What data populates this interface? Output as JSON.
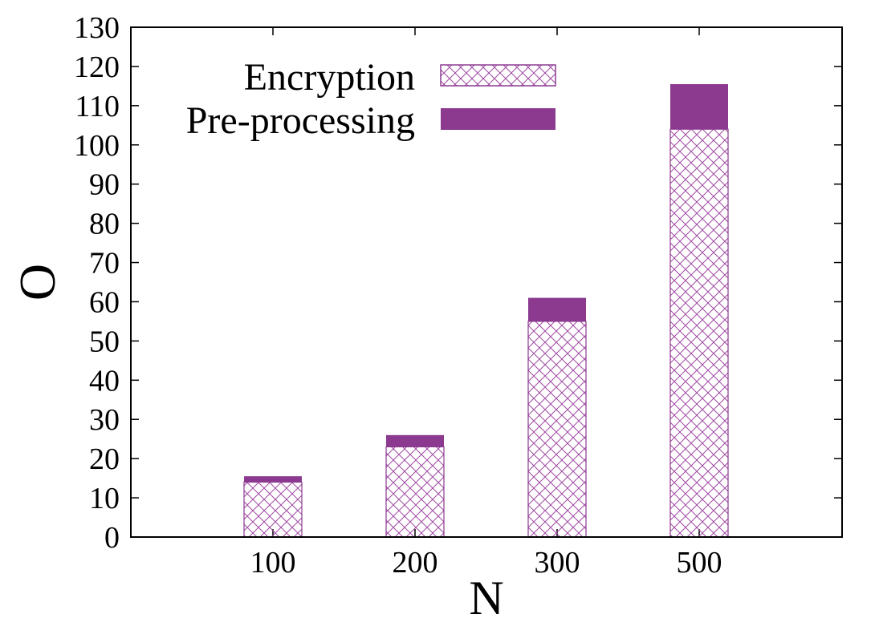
{
  "chart_data": {
    "type": "bar",
    "stacked": true,
    "categories": [
      "100",
      "200",
      "300",
      "500"
    ],
    "series": [
      {
        "name": "Encryption",
        "values": [
          14,
          23,
          55,
          104
        ],
        "pattern": "crosshatch"
      },
      {
        "name": "Pre-processing",
        "values": [
          1.5,
          3,
          6,
          11.5
        ],
        "pattern": "solid"
      }
    ],
    "title": "",
    "xlabel": "N",
    "ylabel": "O",
    "ylim": [
      0,
      130
    ],
    "yticks": [
      "0",
      "10",
      "20",
      "30",
      "40",
      "50",
      "60",
      "70",
      "80",
      "90",
      "100",
      "110",
      "120",
      "130"
    ],
    "grid": false,
    "legend_position": "top-left"
  },
  "colors": {
    "accent": "#8b3a8f",
    "hatch": "#a04aa4",
    "axis": "#000000"
  }
}
